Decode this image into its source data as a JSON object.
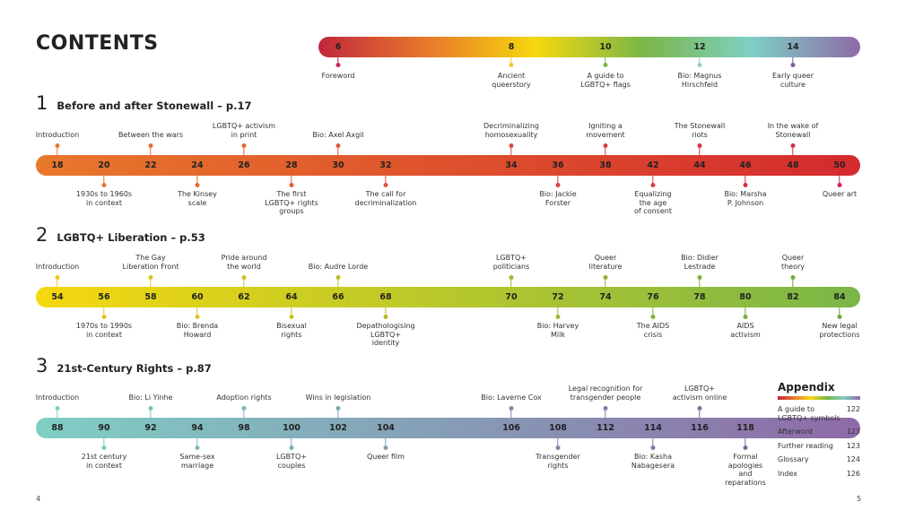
{
  "title": "CONTENTS",
  "intro": {
    "colors": [
      "#c0283c",
      "#e8782c",
      "#f5d80f",
      "#7ab648",
      "#7fcfc4",
      "#8e6aa8"
    ],
    "items": [
      {
        "page": "6",
        "label": "Foreword",
        "pos": "below",
        "color": "#c8284a"
      },
      {
        "page": "8",
        "label": "Ancient\nqueerstory",
        "pos": "below",
        "color": "#f0c830"
      },
      {
        "page": "10",
        "label": "A guide to\nLGBTQ+ flags",
        "pos": "below",
        "color": "#7ab648"
      },
      {
        "page": "12",
        "label": "Bio: Magnus\nHirschfeld",
        "pos": "below",
        "color": "#8ed0c8"
      },
      {
        "page": "14",
        "label": "Early queer\nculture",
        "pos": "below",
        "color": "#7f5a96"
      }
    ]
  },
  "sections": [
    {
      "number": "1",
      "title": "Before and after Stonewall – p.17",
      "colors": [
        "#e8782c",
        "#d42a2e"
      ],
      "dot_colors": [
        "#e8782c",
        "#d4244a"
      ],
      "items": [
        {
          "page": "18",
          "label": "Introduction",
          "pos": "above"
        },
        {
          "page": "20",
          "label": "1930s to 1960s\nin context",
          "pos": "below"
        },
        {
          "page": "22",
          "label": "Between the wars",
          "pos": "above"
        },
        {
          "page": "24",
          "label": "The Kinsey\nscale",
          "pos": "below"
        },
        {
          "page": "26",
          "label": "LGBTQ+ activism\nin print",
          "pos": "above"
        },
        {
          "page": "28",
          "label": "The first\nLGBTQ+ rights\ngroups",
          "pos": "below"
        },
        {
          "page": "30",
          "label": "Bio: Axel Axgil",
          "pos": "above"
        },
        {
          "page": "32",
          "label": "The call for\ndecriminalization",
          "pos": "below"
        },
        {
          "page": "34",
          "label": "Decriminalizing\nhomosexuality",
          "pos": "above"
        },
        {
          "page": "36",
          "label": "Bio: Jackie\nForster",
          "pos": "below"
        },
        {
          "page": "38",
          "label": "Igniting a\nmovement",
          "pos": "above"
        },
        {
          "page": "42",
          "label": "Equalizing\nthe age\nof consent",
          "pos": "below"
        },
        {
          "page": "44",
          "label": "The Stonewall\nriots",
          "pos": "above"
        },
        {
          "page": "46",
          "label": "Bio: Marsha\nP. Johnson",
          "pos": "below"
        },
        {
          "page": "48",
          "label": "In the wake of\nStonewall",
          "pos": "above"
        },
        {
          "page": "50",
          "label": "Queer art",
          "pos": "below"
        }
      ]
    },
    {
      "number": "2",
      "title": "LGBTQ+ Liberation – p.53",
      "colors": [
        "#f5d80f",
        "#7ab648"
      ],
      "dot_colors": [
        "#f0c820",
        "#6aaa3c"
      ],
      "items": [
        {
          "page": "54",
          "label": "Introduction",
          "pos": "above"
        },
        {
          "page": "56",
          "label": "1970s to 1990s\nin context",
          "pos": "below"
        },
        {
          "page": "58",
          "label": "The Gay\nLiberation Front",
          "pos": "above"
        },
        {
          "page": "60",
          "label": "Bio: Brenda\nHoward",
          "pos": "below"
        },
        {
          "page": "62",
          "label": "Pride around\nthe world",
          "pos": "above"
        },
        {
          "page": "64",
          "label": "Bisexual\nrights",
          "pos": "below"
        },
        {
          "page": "66",
          "label": "Bio: Audre Lorde",
          "pos": "above"
        },
        {
          "page": "68",
          "label": "Depathologising\nLGBTQ+\nidentity",
          "pos": "below"
        },
        {
          "page": "70",
          "label": "LGBTQ+\npoliticians",
          "pos": "above"
        },
        {
          "page": "72",
          "label": "Bio: Harvey\nMilk",
          "pos": "below"
        },
        {
          "page": "74",
          "label": "Queer\nliterature",
          "pos": "above"
        },
        {
          "page": "76",
          "label": "The AIDS\ncrisis",
          "pos": "below"
        },
        {
          "page": "78",
          "label": "Bio: Didier\nLestrade",
          "pos": "above"
        },
        {
          "page": "80",
          "label": "AIDS\nactivism",
          "pos": "below"
        },
        {
          "page": "82",
          "label": "Queer\ntheory",
          "pos": "above"
        },
        {
          "page": "84",
          "label": "New legal\nprotections",
          "pos": "below"
        }
      ]
    },
    {
      "number": "3",
      "title": "21st-Century Rights – p.87",
      "colors": [
        "#7fcfc4",
        "#8e6aa8"
      ],
      "dot_colors": [
        "#7fcfc4",
        "#7f5a96"
      ],
      "items": [
        {
          "page": "88",
          "label": "Introduction",
          "pos": "above"
        },
        {
          "page": "90",
          "label": "21st century\nin context",
          "pos": "below"
        },
        {
          "page": "92",
          "label": "Bio: Li Yinhe",
          "pos": "above"
        },
        {
          "page": "94",
          "label": "Same-sex\nmarriage",
          "pos": "below"
        },
        {
          "page": "98",
          "label": "Adoption rights",
          "pos": "above"
        },
        {
          "page": "100",
          "label": "LGBTQ+\ncouples",
          "pos": "below"
        },
        {
          "page": "102",
          "label": "Wins in legislation",
          "pos": "above"
        },
        {
          "page": "104",
          "label": "Queer film",
          "pos": "below"
        },
        {
          "page": "106",
          "label": "Bio: Laverne Cox",
          "pos": "above"
        },
        {
          "page": "108",
          "label": "Transgender\nrights",
          "pos": "below"
        },
        {
          "page": "112",
          "label": "Legal recognition for\ntransgender people",
          "pos": "above"
        },
        {
          "page": "114",
          "label": "Bio: Kasha\nNabagesera",
          "pos": "below"
        },
        {
          "page": "116",
          "label": "LGBTQ+\nactivism online",
          "pos": "above"
        },
        {
          "page": "118",
          "label": "Formal\napologies\nand\nreparations",
          "pos": "below"
        }
      ]
    }
  ],
  "appendix": {
    "title": "Appendix",
    "items": [
      {
        "label": "A guide to\nLGBTQ+ symbols",
        "page": "122"
      },
      {
        "label": "Afterword",
        "page": "123"
      },
      {
        "label": "Further reading",
        "page": "123"
      },
      {
        "label": "Glossary",
        "page": "124"
      },
      {
        "label": "Index",
        "page": "126"
      }
    ]
  },
  "folio": {
    "left": "4",
    "right": "5"
  }
}
